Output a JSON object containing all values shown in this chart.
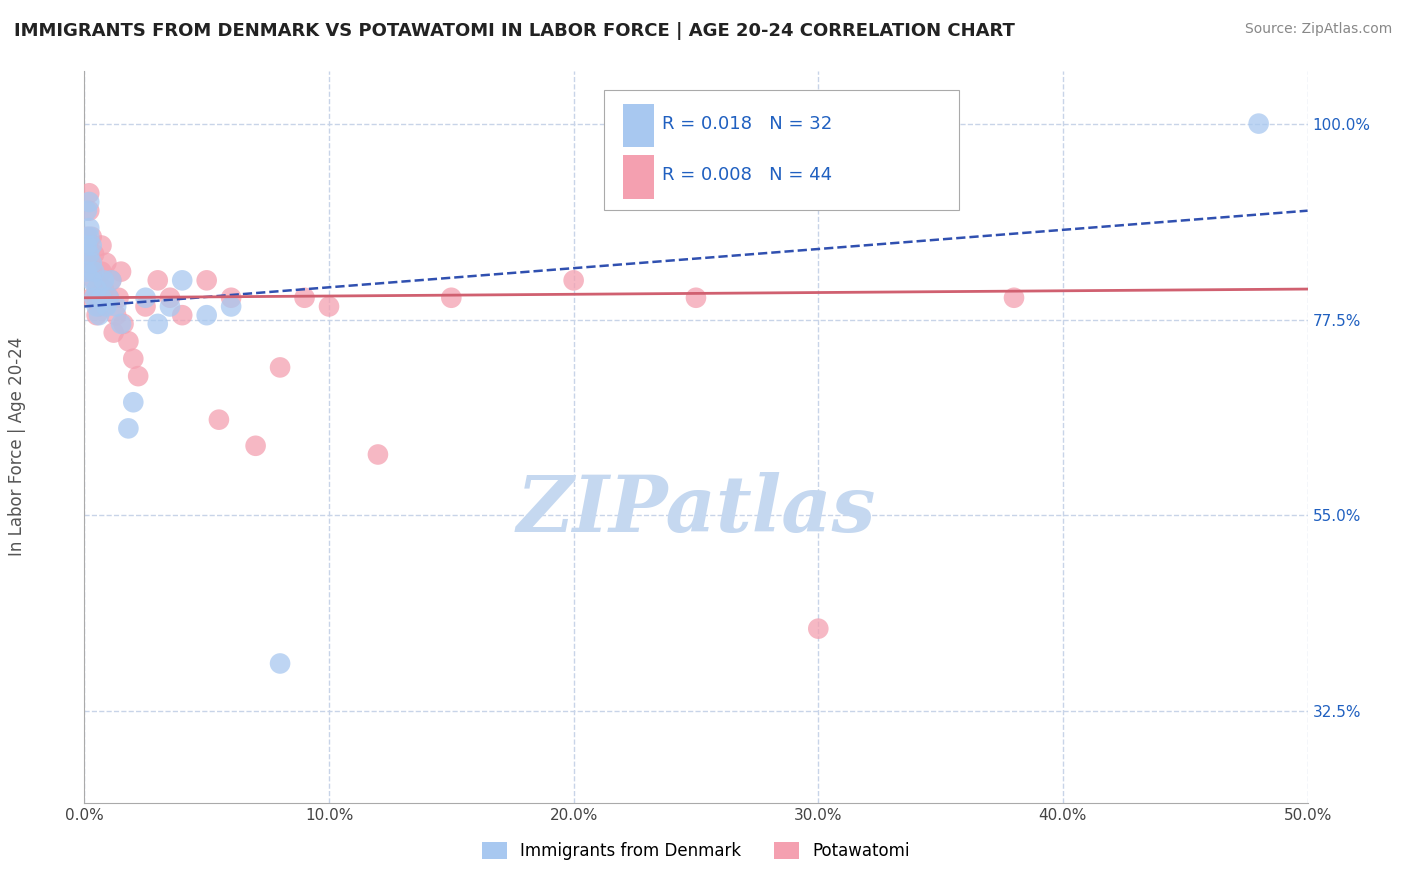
{
  "title": "IMMIGRANTS FROM DENMARK VS POTAWATOMI IN LABOR FORCE | AGE 20-24 CORRELATION CHART",
  "source": "Source: ZipAtlas.com",
  "ylabel_text": "In Labor Force | Age 20-24",
  "xlim": [
    0.0,
    0.5
  ],
  "ylim": [
    0.22,
    1.06
  ],
  "xticks": [
    0.0,
    0.1,
    0.2,
    0.3,
    0.4,
    0.5
  ],
  "xticklabels": [
    "0.0%",
    "10.0%",
    "20.0%",
    "30.0%",
    "40.0%",
    "50.0%"
  ],
  "yticks": [
    0.325,
    0.55,
    0.775,
    1.0
  ],
  "yticklabels": [
    "32.5%",
    "55.0%",
    "77.5%",
    "100.0%"
  ],
  "denmark_color": "#a8c8f0",
  "potawatomi_color": "#f4a0b0",
  "denmark_line_color": "#3050b0",
  "potawatomi_line_color": "#d06070",
  "denmark_R": 0.018,
  "denmark_N": 32,
  "potawatomi_R": 0.008,
  "potawatomi_N": 44,
  "legend_R_color": "#2060c0",
  "denmark_x": [
    0.001,
    0.001,
    0.001,
    0.002,
    0.002,
    0.002,
    0.002,
    0.003,
    0.003,
    0.003,
    0.004,
    0.004,
    0.005,
    0.005,
    0.006,
    0.007,
    0.008,
    0.009,
    0.01,
    0.011,
    0.013,
    0.015,
    0.018,
    0.02,
    0.025,
    0.03,
    0.035,
    0.04,
    0.05,
    0.06,
    0.08,
    0.48
  ],
  "denmark_y": [
    0.83,
    0.86,
    0.9,
    0.85,
    0.87,
    0.88,
    0.91,
    0.82,
    0.84,
    0.86,
    0.8,
    0.83,
    0.79,
    0.81,
    0.78,
    0.8,
    0.82,
    0.79,
    0.8,
    0.82,
    0.79,
    0.77,
    0.65,
    0.68,
    0.8,
    0.77,
    0.79,
    0.82,
    0.78,
    0.79,
    0.38,
    1.0
  ],
  "potawatomi_x": [
    0.001,
    0.001,
    0.002,
    0.002,
    0.002,
    0.003,
    0.003,
    0.003,
    0.004,
    0.004,
    0.005,
    0.005,
    0.006,
    0.007,
    0.007,
    0.008,
    0.009,
    0.01,
    0.011,
    0.012,
    0.013,
    0.014,
    0.015,
    0.016,
    0.018,
    0.02,
    0.022,
    0.025,
    0.03,
    0.035,
    0.04,
    0.05,
    0.055,
    0.06,
    0.07,
    0.08,
    0.09,
    0.1,
    0.12,
    0.15,
    0.2,
    0.25,
    0.3,
    0.38
  ],
  "potawatomi_y": [
    0.84,
    0.87,
    0.9,
    0.85,
    0.92,
    0.8,
    0.83,
    0.87,
    0.82,
    0.85,
    0.78,
    0.8,
    0.79,
    0.83,
    0.86,
    0.81,
    0.84,
    0.8,
    0.82,
    0.76,
    0.78,
    0.8,
    0.83,
    0.77,
    0.75,
    0.73,
    0.71,
    0.79,
    0.82,
    0.8,
    0.78,
    0.82,
    0.66,
    0.8,
    0.63,
    0.72,
    0.8,
    0.79,
    0.62,
    0.8,
    0.82,
    0.8,
    0.42,
    0.8
  ],
  "denmark_trend": [
    0.79,
    0.9
  ],
  "potawatomi_trend": [
    0.8,
    0.81
  ],
  "watermark_text": "ZIPatlas",
  "watermark_color": "#c5d8f0",
  "background_color": "#ffffff",
  "grid_color": "#c8d4e8",
  "bottom_legend": [
    "Immigrants from Denmark",
    "Potawatomi"
  ],
  "bottom_legend_colors": [
    "#a8c8f0",
    "#f4a0b0"
  ]
}
